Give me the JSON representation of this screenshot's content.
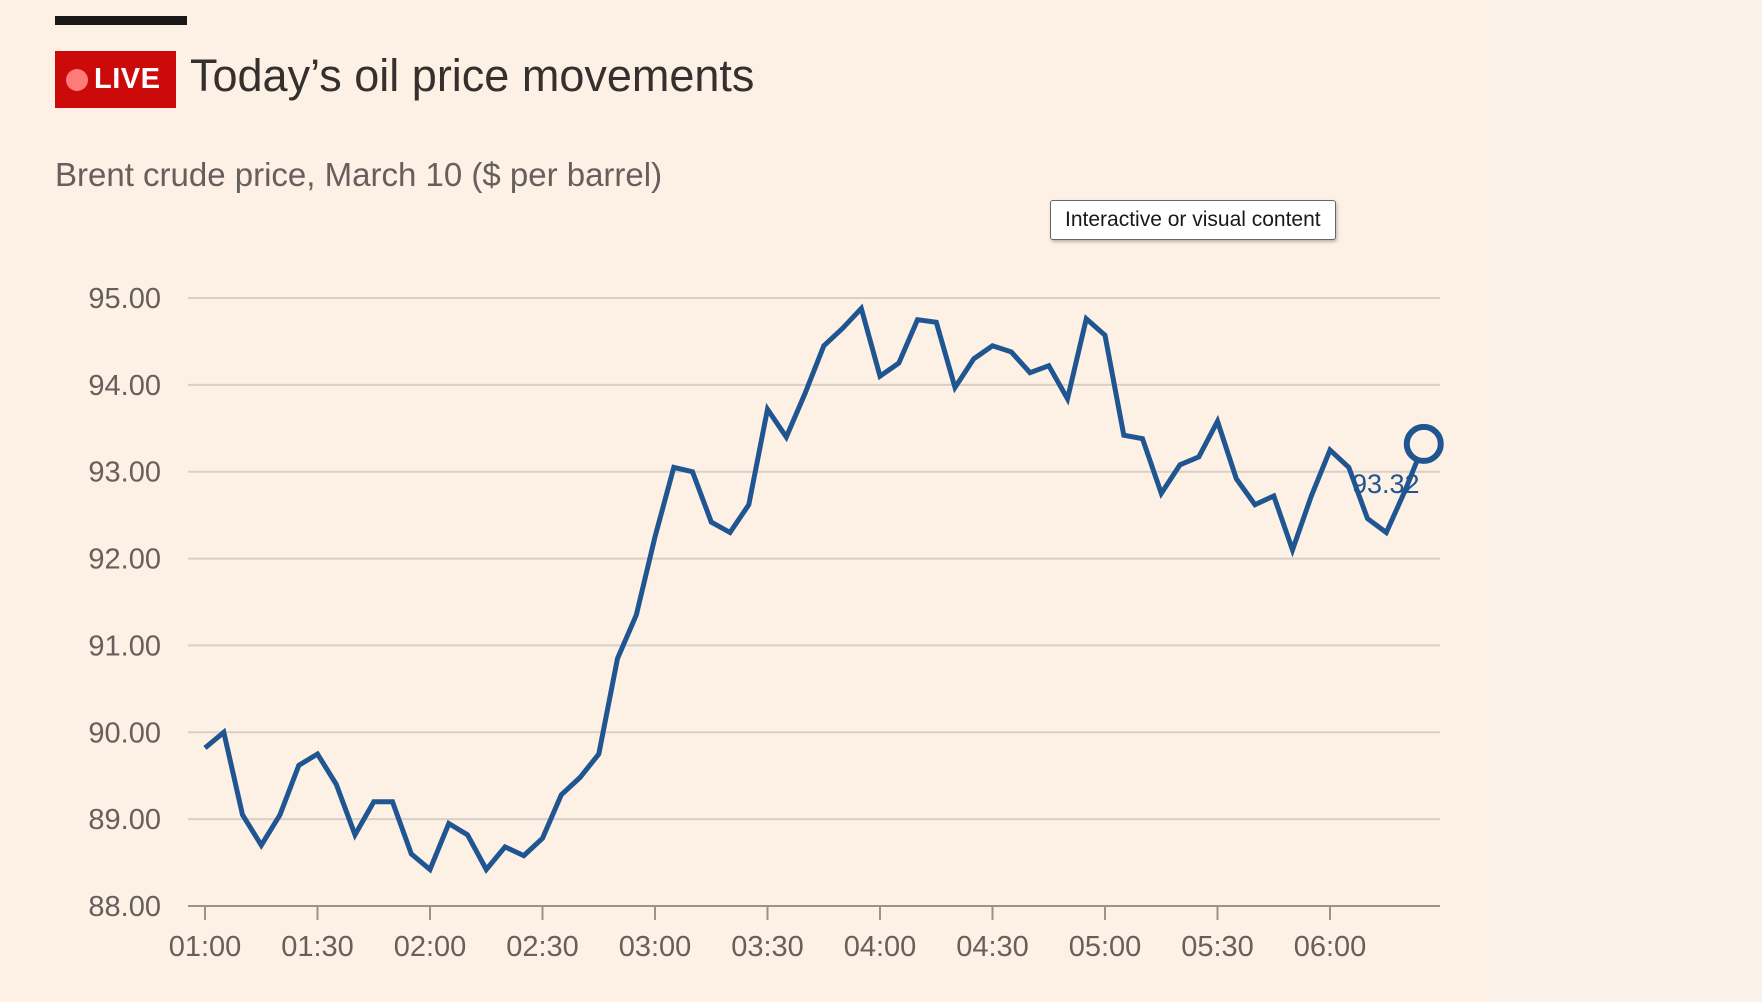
{
  "header": {
    "badge_label": "LIVE",
    "headline": "Today’s oil price movements",
    "subtitle": "Brent crude price, March 10 ($ per barrel)"
  },
  "tooltip": {
    "text": "Interactive or visual content"
  },
  "colors": {
    "background": "#fdf1e6",
    "line": "#1f5591",
    "badge": "#cc0a0a",
    "gridline": "#d8d0c8"
  },
  "chart_data": {
    "type": "line",
    "title": "Brent crude price, March 10 ($ per barrel)",
    "xlabel": "",
    "ylabel": "",
    "ylim": [
      88,
      95
    ],
    "xlim_minutes": [
      60,
      390
    ],
    "y_ticks": [
      "95.00",
      "94.00",
      "93.00",
      "92.00",
      "91.00",
      "90.00",
      "89.00",
      "88.00"
    ],
    "y_tick_values": [
      95,
      94,
      93,
      92,
      91,
      90,
      89,
      88
    ],
    "x_ticks": [
      "01:00",
      "01:30",
      "02:00",
      "02:30",
      "03:00",
      "03:30",
      "04:00",
      "04:30",
      "05:00",
      "05:30",
      "06:00"
    ],
    "x_tick_minutes": [
      60,
      90,
      120,
      150,
      180,
      210,
      240,
      270,
      300,
      330,
      360
    ],
    "grid": true,
    "series": [
      {
        "name": "Brent crude",
        "minutes": [
          60,
          65,
          70,
          75,
          80,
          85,
          90,
          95,
          100,
          105,
          110,
          115,
          120,
          125,
          130,
          135,
          140,
          145,
          150,
          155,
          160,
          165,
          170,
          175,
          180,
          185,
          190,
          195,
          200,
          205,
          210,
          215,
          220,
          225,
          230,
          235,
          240,
          245,
          250,
          255,
          260,
          265,
          270,
          275,
          280,
          285,
          290,
          295,
          300,
          305,
          310,
          315,
          320,
          325,
          330,
          335,
          340,
          345,
          350,
          355,
          360,
          365,
          370,
          375,
          380,
          385
        ],
        "values": [
          89.82,
          90.0,
          89.05,
          88.7,
          89.05,
          89.62,
          89.75,
          89.4,
          88.82,
          89.2,
          89.2,
          88.6,
          88.42,
          88.95,
          88.82,
          88.42,
          88.68,
          88.58,
          88.78,
          89.28,
          89.48,
          89.75,
          90.85,
          91.35,
          92.25,
          93.05,
          93.0,
          92.42,
          92.3,
          92.62,
          93.72,
          93.4,
          93.9,
          94.45,
          94.65,
          94.88,
          94.1,
          94.25,
          94.75,
          94.72,
          93.97,
          94.3,
          94.45,
          94.38,
          94.14,
          94.22,
          93.84,
          94.76,
          94.57,
          93.42,
          93.38,
          92.75,
          93.08,
          93.17,
          93.58,
          92.92,
          92.62,
          92.72,
          92.1,
          92.72,
          93.25,
          93.05,
          92.46,
          92.3,
          92.78,
          93.32
        ]
      }
    ],
    "last_value_label": "93.32"
  }
}
